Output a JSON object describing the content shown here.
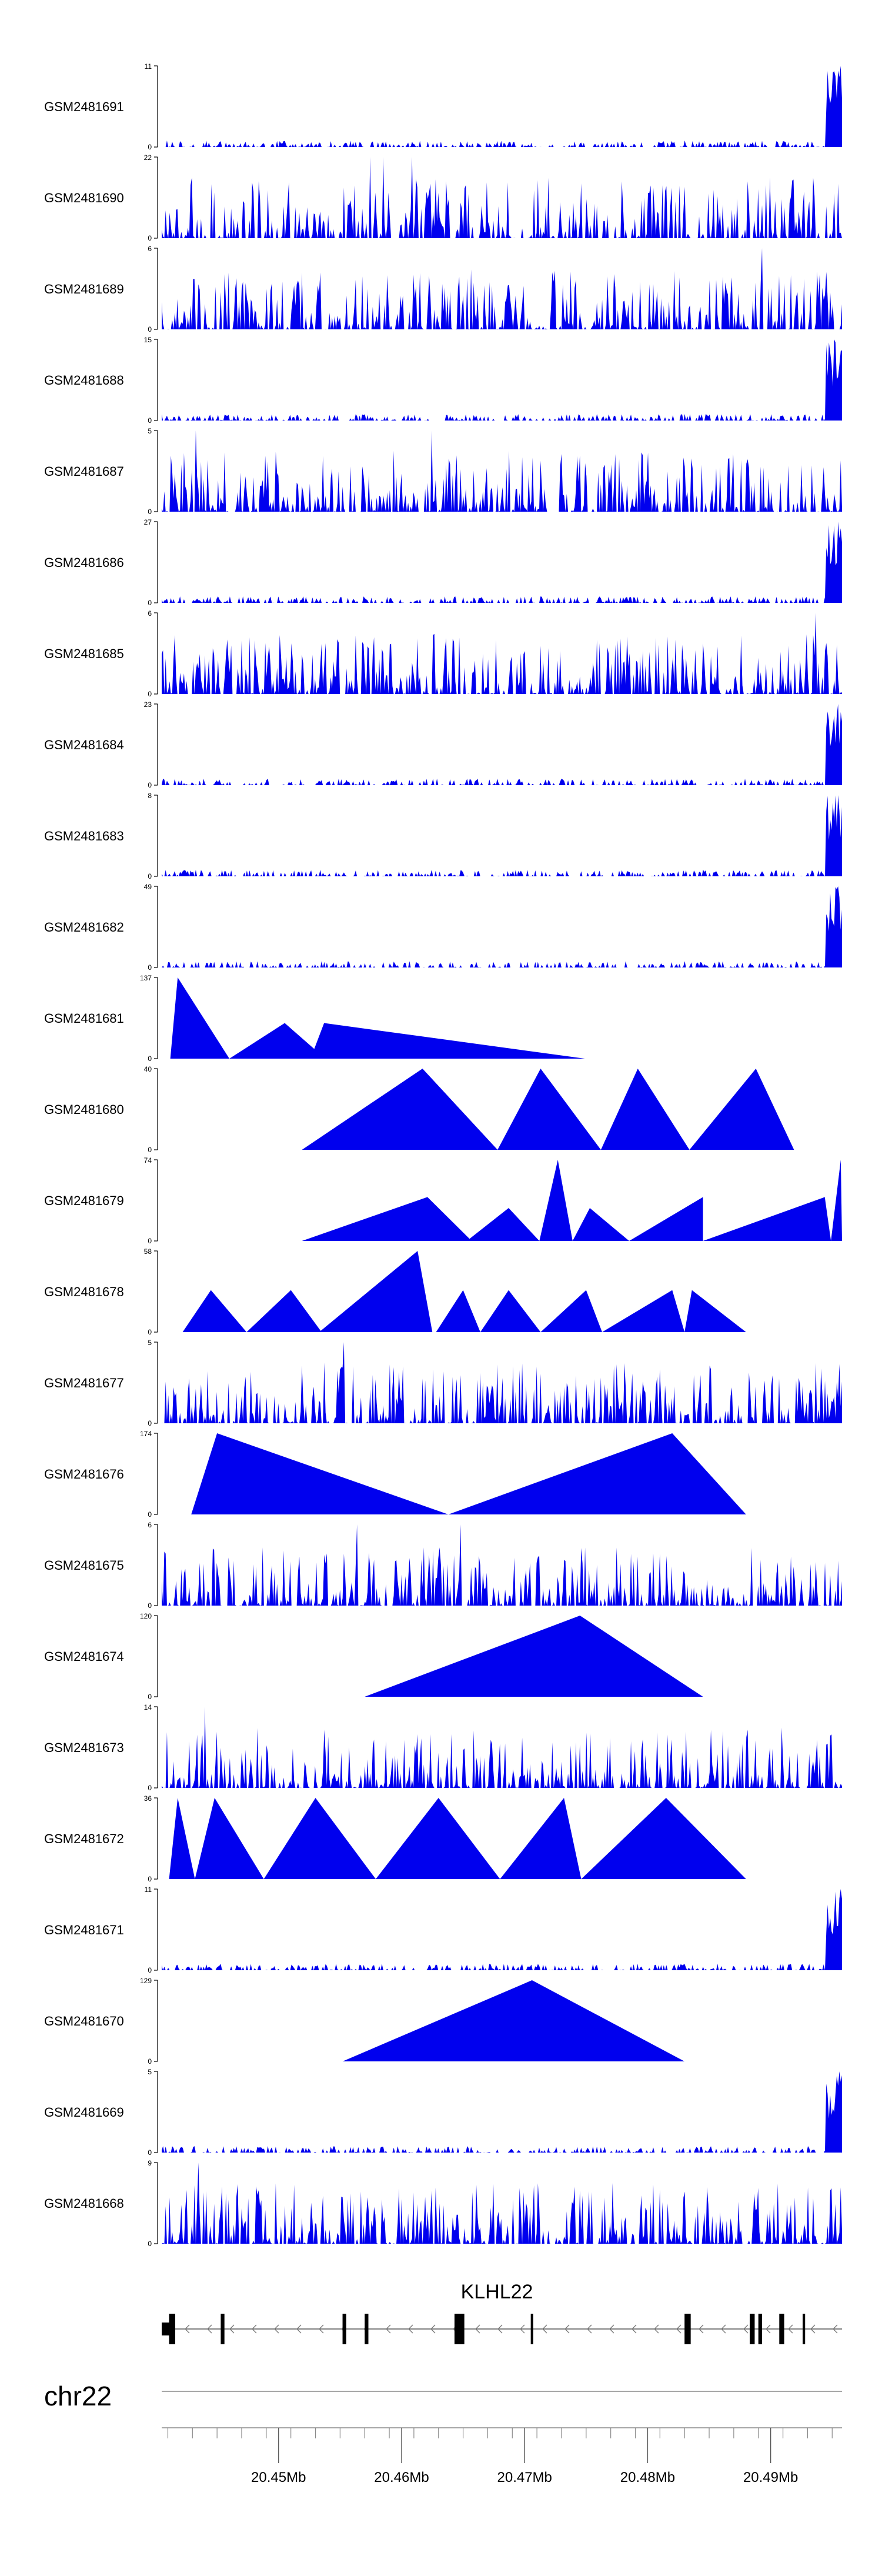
{
  "colors": {
    "signal": "#0000ee",
    "axis": "#000000",
    "gene": "#000000",
    "chrom_line": "#888888"
  },
  "chart_data": {
    "type": "area",
    "title": "",
    "region": {
      "chrom": "chr22",
      "start_mb": 20.4405,
      "end_mb": 20.4958
    },
    "x_tick_labels": [
      "20.45Mb",
      "20.46Mb",
      "20.47Mb",
      "20.48Mb",
      "20.49Mb"
    ],
    "x_tick_values": [
      20.45,
      20.46,
      20.47,
      20.48,
      20.49
    ],
    "tracks": [
      {
        "name": "GSM2481691",
        "ymax": 11,
        "peaks": [
          [
            20.4957,
            11
          ]
        ]
      },
      {
        "name": "GSM2481690",
        "ymax": 22,
        "peaks": [
          [
            20.4574,
            22
          ],
          [
            20.4585,
            22
          ],
          [
            20.4608,
            22
          ]
        ]
      },
      {
        "name": "GSM2481689",
        "ymax": 6,
        "peaks": [
          [
            20.4893,
            6
          ]
        ]
      },
      {
        "name": "GSM2481688",
        "ymax": 15,
        "peaks": [
          [
            20.4952,
            15
          ],
          [
            20.4958,
            13
          ]
        ]
      },
      {
        "name": "GSM2481687",
        "ymax": 5,
        "peaks": [
          [
            20.4433,
            5
          ],
          [
            20.4625,
            5
          ]
        ]
      },
      {
        "name": "GSM2481686",
        "ymax": 27,
        "peaks": [
          [
            20.4955,
            27
          ],
          [
            20.4958,
            20
          ]
        ]
      },
      {
        "name": "GSM2481685",
        "ymax": 6,
        "peaks": [
          [
            20.4937,
            6
          ]
        ]
      },
      {
        "name": "GSM2481684",
        "ymax": 23,
        "peaks": [
          [
            20.4955,
            23
          ],
          [
            20.4958,
            18
          ]
        ]
      },
      {
        "name": "GSM2481683",
        "ymax": 8,
        "peaks": [
          [
            20.4955,
            8
          ]
        ]
      },
      {
        "name": "GSM2481682",
        "ymax": 49,
        "peaks": [
          [
            20.4955,
            49
          ],
          [
            20.4958,
            35
          ]
        ]
      },
      {
        "name": "GSM2481681",
        "ymax": 137,
        "segments": [
          [
            20.4412,
            20.4418,
            20.446,
            137
          ],
          [
            20.446,
            20.4505,
            20.4538,
            60
          ],
          [
            20.4526,
            20.4537,
            20.4749,
            60
          ]
        ]
      },
      {
        "name": "GSM2481680",
        "ymax": 40,
        "segments": [
          [
            20.4519,
            20.4617,
            20.4678,
            40
          ],
          [
            20.4678,
            20.4713,
            20.4762,
            40
          ],
          [
            20.4762,
            20.4792,
            20.4834,
            40
          ],
          [
            20.4834,
            20.4888,
            20.4919,
            40
          ]
        ]
      },
      {
        "name": "GSM2481679",
        "ymax": 74,
        "segments": [
          [
            20.4519,
            20.4621,
            20.4657,
            40
          ],
          [
            20.4653,
            20.4687,
            20.4712,
            30
          ],
          [
            20.4712,
            20.4727,
            20.4739,
            74
          ],
          [
            20.4739,
            20.4753,
            20.4785,
            30
          ],
          [
            20.4785,
            20.4845,
            20.4845,
            40
          ],
          [
            20.4845,
            20.4944,
            20.4949,
            40
          ],
          [
            20.4949,
            20.4957,
            20.4958,
            74
          ]
        ]
      },
      {
        "name": "GSM2481678",
        "ymax": 58,
        "segments": [
          [
            20.4422,
            20.4445,
            20.4474,
            30
          ],
          [
            20.4474,
            20.451,
            20.4535,
            30
          ],
          [
            20.4533,
            20.4613,
            20.4625,
            58
          ],
          [
            20.4628,
            20.465,
            20.4664,
            30
          ],
          [
            20.4664,
            20.4687,
            20.4713,
            30
          ],
          [
            20.4713,
            20.475,
            20.4763,
            30
          ],
          [
            20.4763,
            20.482,
            20.483,
            30
          ],
          [
            20.483,
            20.4836,
            20.488,
            30
          ]
        ]
      },
      {
        "name": "GSM2481677",
        "ymax": 5,
        "peaks": [
          [
            20.4553,
            5
          ]
        ]
      },
      {
        "name": "GSM2481676",
        "ymax": 174,
        "segments": [
          [
            20.4429,
            20.445,
            20.4638,
            174
          ],
          [
            20.4638,
            20.482,
            20.488,
            174
          ]
        ]
      },
      {
        "name": "GSM2481675",
        "ymax": 6,
        "peaks": [
          [
            20.4564,
            6
          ],
          [
            20.4648,
            6
          ]
        ]
      },
      {
        "name": "GSM2481674",
        "ymax": 120,
        "segments": [
          [
            20.457,
            20.4745,
            20.4845,
            120
          ]
        ]
      },
      {
        "name": "GSM2481673",
        "ymax": 14,
        "peaks": [
          [
            20.444,
            14
          ]
        ]
      },
      {
        "name": "GSM2481672",
        "ymax": 36,
        "segments": [
          [
            20.4411,
            20.4418,
            20.4432,
            36
          ],
          [
            20.4432,
            20.4448,
            20.4488,
            36
          ],
          [
            20.4488,
            20.453,
            20.4579,
            36
          ],
          [
            20.4579,
            20.463,
            20.468,
            36
          ],
          [
            20.468,
            20.4732,
            20.4746,
            36
          ],
          [
            20.4746,
            20.4815,
            20.488,
            36
          ]
        ]
      },
      {
        "name": "GSM2481671",
        "ymax": 11,
        "peaks": [
          [
            20.4957,
            11
          ]
        ]
      },
      {
        "name": "GSM2481670",
        "ymax": 129,
        "segments": [
          [
            20.4552,
            20.4706,
            20.483,
            129
          ]
        ]
      },
      {
        "name": "GSM2481669",
        "ymax": 5,
        "peaks": [
          [
            20.4956,
            5
          ]
        ]
      },
      {
        "name": "GSM2481668",
        "ymax": 9,
        "peaks": [
          [
            20.4435,
            9
          ]
        ]
      }
    ],
    "gene": {
      "name": "KLHL22",
      "strand": "-",
      "start_mb": 20.4405,
      "end_mb": 20.4958,
      "exons": [
        [
          20.4405,
          20.4411,
          "utr"
        ],
        [
          20.4411,
          20.4416,
          "cds"
        ],
        [
          20.4453,
          20.4456,
          "cds"
        ],
        [
          20.4552,
          20.4555,
          "cds"
        ],
        [
          20.457,
          20.4573,
          "cds"
        ],
        [
          20.4643,
          20.4651,
          "cds"
        ],
        [
          20.4705,
          20.4707,
          "cds"
        ],
        [
          20.483,
          20.4835,
          "cds"
        ],
        [
          20.4883,
          20.4887,
          "cds"
        ],
        [
          20.489,
          20.4893,
          "cds"
        ],
        [
          20.4907,
          20.4911,
          "cds"
        ],
        [
          20.4926,
          20.4928,
          "cds"
        ]
      ]
    },
    "chrom_label": "chr22"
  }
}
